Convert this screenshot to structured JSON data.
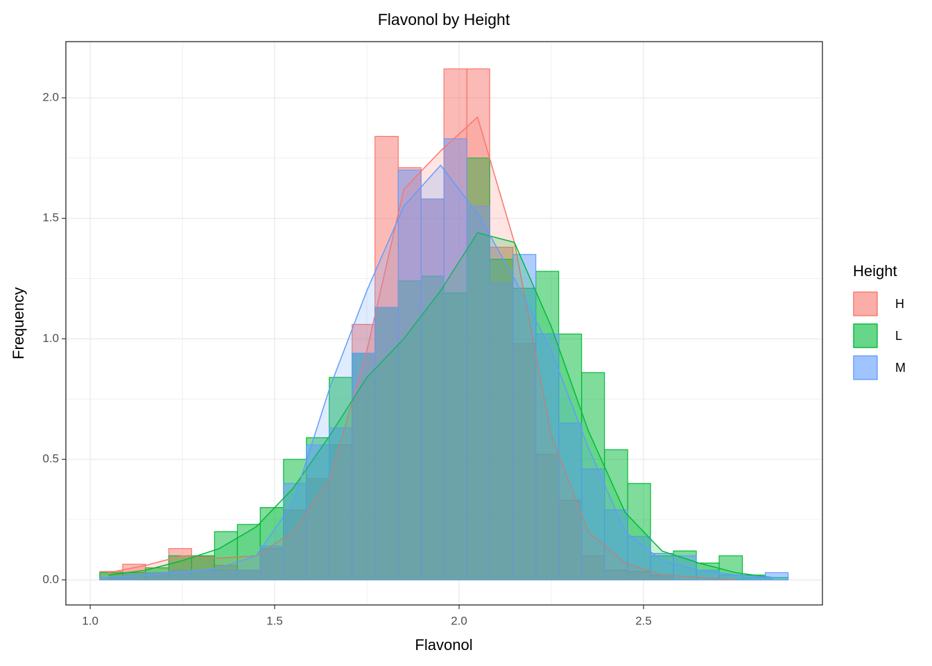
{
  "chart_data": {
    "type": "histogram",
    "title": "Flavonol by Height",
    "x_label": "Flavonol",
    "y_label": "Frequency",
    "legend_title": "Height",
    "legend_position": "right",
    "grid": true,
    "bins": [
      1.026,
      1.088,
      1.15,
      1.213,
      1.275,
      1.337,
      1.399,
      1.461,
      1.524,
      1.586,
      1.648,
      1.71,
      1.772,
      1.835,
      1.897,
      1.959,
      2.021,
      2.083,
      2.146,
      2.208,
      2.27,
      2.332,
      2.394,
      2.457,
      2.519,
      2.581,
      2.643,
      2.705,
      2.768,
      2.83,
      2.892
    ],
    "density_x": [
      1.05,
      1.15,
      1.25,
      1.35,
      1.45,
      1.55,
      1.65,
      1.75,
      1.85,
      1.95,
      2.05,
      2.15,
      2.25,
      2.35,
      2.45,
      2.55,
      2.65,
      2.75,
      2.85
    ],
    "series": [
      {
        "name": "H",
        "color": "#F8766D",
        "values": [
          0.035,
          0.065,
          0.03,
          0.13,
          0.1,
          0.06,
          0.04,
          0.13,
          0.29,
          0.42,
          0.56,
          1.06,
          1.84,
          1.71,
          1.58,
          2.12,
          2.12,
          1.38,
          0.98,
          0.52,
          0.33,
          0.1,
          0.04,
          0.035,
          0.02,
          0,
          0,
          0,
          0,
          0
        ],
        "density": [
          0.03,
          0.06,
          0.1,
          0.09,
          0.1,
          0.2,
          0.42,
          0.95,
          1.62,
          1.78,
          1.92,
          1.4,
          0.6,
          0.2,
          0.07,
          0.02,
          0.01,
          0.0,
          null
        ]
      },
      {
        "name": "L",
        "color": "#00BA38",
        "values": [
          0.03,
          0.03,
          0.05,
          0.1,
          0.1,
          0.2,
          0.23,
          0.3,
          0.5,
          0.59,
          0.84,
          0.94,
          1.13,
          1.24,
          1.26,
          1.19,
          1.75,
          1.33,
          1.21,
          1.28,
          1.02,
          0.86,
          0.54,
          0.4,
          0.1,
          0.12,
          0.07,
          0.1,
          0.02,
          0.01
        ],
        "density": [
          0.02,
          0.04,
          0.08,
          0.13,
          0.22,
          0.38,
          0.6,
          0.84,
          1.0,
          1.2,
          1.44,
          1.4,
          1.05,
          0.62,
          0.28,
          0.12,
          0.07,
          0.03,
          0.01
        ]
      },
      {
        "name": "M",
        "color": "#619CFF",
        "values": [
          0.01,
          0.02,
          0.03,
          0.04,
          0.04,
          0.04,
          0.04,
          0.14,
          0.4,
          0.56,
          0.63,
          0.94,
          1.13,
          1.7,
          1.58,
          1.83,
          1.55,
          1.23,
          1.35,
          1.02,
          0.65,
          0.46,
          0.29,
          0.18,
          0.11,
          0.1,
          0.04,
          0.02,
          0.01,
          0.03
        ],
        "density": [
          0.01,
          0.02,
          0.03,
          0.05,
          0.1,
          0.32,
          0.8,
          1.2,
          1.55,
          1.72,
          1.52,
          1.25,
          0.95,
          0.55,
          0.2,
          0.08,
          0.04,
          0.02,
          0.01
        ]
      }
    ],
    "xlim": [
      0.934,
      2.985
    ],
    "ylim": [
      -0.104,
      2.233
    ],
    "xticks": [
      {
        "value": 1.0,
        "label": "1.0"
      },
      1.5,
      {
        "value": 2.0,
        "label": "2.0"
      },
      2.5
    ],
    "yticks": [
      {
        "value": 0.0,
        "label": "0.0"
      },
      0.5,
      {
        "value": 1.0,
        "label": "1.0"
      },
      1.5,
      {
        "value": 2.0,
        "label": "2.0"
      }
    ]
  }
}
